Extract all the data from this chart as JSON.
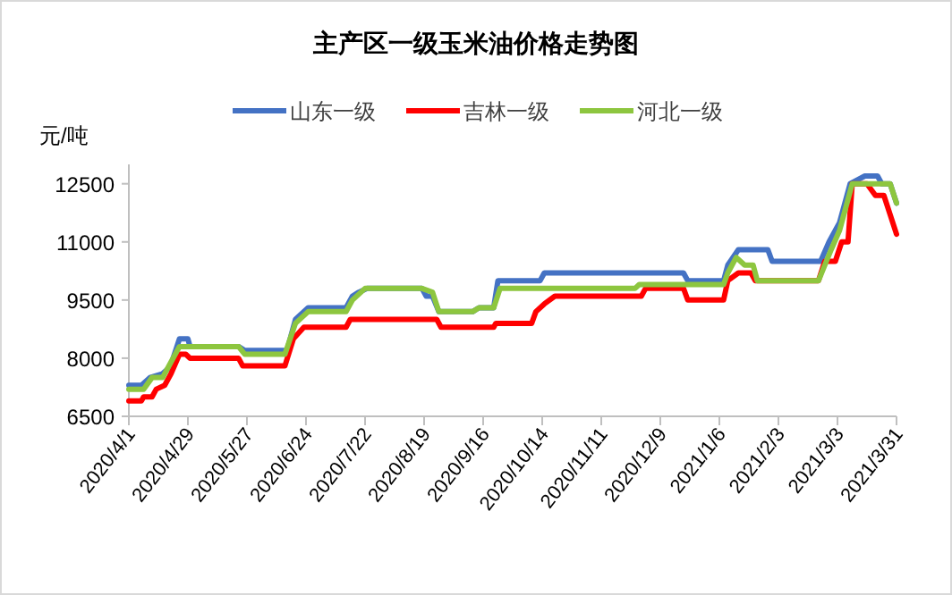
{
  "chart_data": {
    "type": "line",
    "title": "主产区一级玉米油价格走势图",
    "ylabel": "元/吨",
    "legend": "top",
    "grid": false,
    "marker": "none",
    "line_style": "solid",
    "xlim": [
      "2020-04-01",
      "2021-03-31"
    ],
    "xticks": [
      {
        "value": "2020-04-01",
        "label": "2020/4/1"
      },
      {
        "value": "2020-04-29",
        "label": "2020/4/29"
      },
      {
        "value": "2020-05-27",
        "label": "2020/5/27"
      },
      {
        "value": "2020-06-24",
        "label": "2020/6/24"
      },
      {
        "value": "2020-07-22",
        "label": "2020/7/22"
      },
      {
        "value": "2020-08-19",
        "label": "2020/8/19"
      },
      {
        "value": "2020-09-16",
        "label": "2020/9/16"
      },
      {
        "value": "2020-10-14",
        "label": "2020/10/14"
      },
      {
        "value": "2020-11-11",
        "label": "2020/11/11"
      },
      {
        "value": "2020-12-09",
        "label": "2020/12/9"
      },
      {
        "value": "2021-01-06",
        "label": "2021/1/6"
      },
      {
        "value": "2021-02-03",
        "label": "2021/2/3"
      },
      {
        "value": "2021-03-03",
        "label": "2021/3/3"
      },
      {
        "value": "2021-03-31",
        "label": "2021/3/31"
      }
    ],
    "ylim": [
      6500,
      13000
    ],
    "yticks": [
      6500,
      8000,
      9500,
      11000,
      12500
    ],
    "series": [
      {
        "name": "山东一级",
        "color": "#4472c4",
        "x": [
          "2020-04-01",
          "2020-04-07",
          "2020-04-11",
          "2020-04-17",
          "2020-04-21",
          "2020-04-22",
          "2020-04-25",
          "2020-04-29",
          "2020-04-30",
          "2020-05-23",
          "2020-05-26",
          "2020-06-15",
          "2020-06-19",
          "2020-06-25",
          "2020-07-13",
          "2020-07-16",
          "2020-07-19",
          "2020-07-23",
          "2020-08-18",
          "2020-08-20",
          "2020-08-23",
          "2020-08-26",
          "2020-09-11",
          "2020-09-14",
          "2020-09-21",
          "2020-09-23",
          "2020-10-13",
          "2020-10-15",
          "2020-12-20",
          "2020-12-22",
          "2021-01-08",
          "2021-01-10",
          "2021-01-15",
          "2021-01-29",
          "2021-01-31",
          "2021-02-23",
          "2021-02-27",
          "2021-03-04",
          "2021-03-09",
          "2021-03-16",
          "2021-03-22",
          "2021-03-24",
          "2021-03-28",
          "2021-03-31"
        ],
        "values": [
          7300,
          7300,
          7500,
          7600,
          7800,
          8000,
          8500,
          8500,
          8300,
          8300,
          8200,
          8200,
          9000,
          9300,
          9300,
          9600,
          9700,
          9800,
          9800,
          9600,
          9600,
          9200,
          9200,
          9300,
          9300,
          10000,
          10000,
          10200,
          10200,
          10000,
          10000,
          10400,
          10800,
          10800,
          10500,
          10500,
          11000,
          11500,
          12500,
          12700,
          12700,
          12500,
          12500,
          12000
        ]
      },
      {
        "name": "吉林一级",
        "color": "#ff0000",
        "x": [
          "2020-04-01",
          "2020-04-07",
          "2020-04-08",
          "2020-04-12",
          "2020-04-14",
          "2020-04-18",
          "2020-04-21",
          "2020-04-25",
          "2020-04-28",
          "2020-04-30",
          "2020-05-23",
          "2020-05-25",
          "2020-06-14",
          "2020-06-18",
          "2020-06-23",
          "2020-07-13",
          "2020-07-15",
          "2020-08-25",
          "2020-08-27",
          "2020-09-21",
          "2020-09-22",
          "2020-10-09",
          "2020-10-11",
          "2020-10-15",
          "2020-10-20",
          "2020-11-30",
          "2020-12-02",
          "2020-12-20",
          "2020-12-22",
          "2021-01-08",
          "2021-01-10",
          "2021-01-15",
          "2021-01-21",
          "2021-01-23",
          "2021-02-22",
          "2021-02-25",
          "2021-03-02",
          "2021-03-05",
          "2021-03-08",
          "2021-03-10",
          "2021-03-17",
          "2021-03-21",
          "2021-03-25",
          "2021-03-28",
          "2021-03-31"
        ],
        "values": [
          6900,
          6900,
          7000,
          7000,
          7200,
          7300,
          7600,
          8100,
          8100,
          8000,
          8000,
          7800,
          7800,
          8500,
          8800,
          8800,
          9000,
          9000,
          8800,
          8800,
          8900,
          8900,
          9200,
          9400,
          9600,
          9600,
          9800,
          9800,
          9500,
          9500,
          10000,
          10200,
          10200,
          10000,
          10000,
          10500,
          10500,
          11000,
          11000,
          12500,
          12500,
          12200,
          12200,
          11700,
          11200
        ]
      },
      {
        "name": "河北一级",
        "color": "#8dc63f",
        "x": [
          "2020-04-01",
          "2020-04-08",
          "2020-04-12",
          "2020-04-17",
          "2020-04-21",
          "2020-04-25",
          "2020-05-23",
          "2020-05-26",
          "2020-06-14",
          "2020-06-19",
          "2020-06-25",
          "2020-07-13",
          "2020-07-16",
          "2020-07-22",
          "2020-08-18",
          "2020-08-23",
          "2020-08-26",
          "2020-09-11",
          "2020-09-14",
          "2020-09-21",
          "2020-09-24",
          "2020-11-27",
          "2020-11-29",
          "2021-01-08",
          "2021-01-10",
          "2021-01-14",
          "2021-01-18",
          "2021-01-22",
          "2021-01-24",
          "2021-02-22",
          "2021-02-28",
          "2021-03-04",
          "2021-03-10",
          "2021-03-28",
          "2021-03-31"
        ],
        "values": [
          7200,
          7200,
          7500,
          7500,
          7900,
          8300,
          8300,
          8100,
          8100,
          8900,
          9200,
          9200,
          9500,
          9800,
          9800,
          9700,
          9200,
          9200,
          9300,
          9300,
          9800,
          9800,
          9900,
          9900,
          10200,
          10600,
          10400,
          10400,
          10000,
          10000,
          10800,
          11300,
          12500,
          12500,
          12000
        ]
      }
    ]
  }
}
